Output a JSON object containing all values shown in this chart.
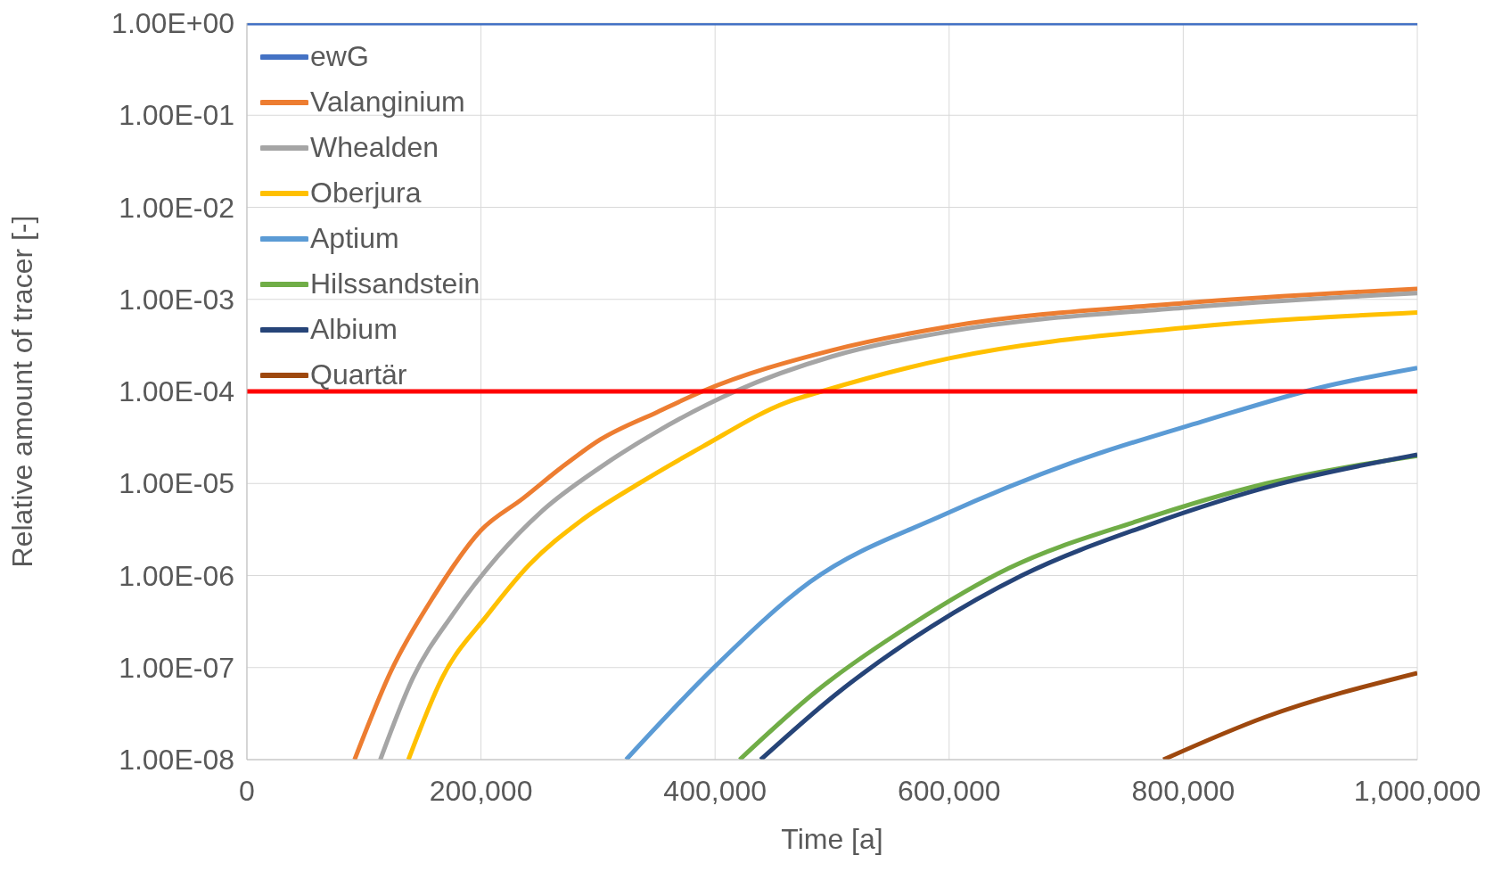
{
  "chart_data": {
    "type": "line",
    "xlabel": "Time [a]",
    "ylabel": "Relative amount of tracer [-]",
    "log": "y",
    "grid": true,
    "legend": "top left",
    "xlim": [
      0,
      1000000
    ],
    "xticks": [
      0,
      {
        "value": 200000,
        "label": "200,000"
      },
      {
        "value": 400000,
        "label": "400,000"
      },
      {
        "value": 600000,
        "label": "600,000"
      },
      {
        "value": 800000,
        "label": "800,000"
      },
      {
        "value": 1000000,
        "label": "1,000,000"
      }
    ],
    "ylim": [
      1e-08,
      1
    ],
    "yticks": [
      {
        "value": 1e-08,
        "label": "1.00E-08"
      },
      {
        "value": 1e-07,
        "label": "1.00E-07"
      },
      {
        "value": 1e-06,
        "label": "1.00E-06"
      },
      {
        "value": 1e-05,
        "label": "1.00E-05"
      },
      {
        "value": 0.0001,
        "label": "1.00E-04"
      },
      {
        "value": 0.001,
        "label": "1.00E-03"
      },
      {
        "value": 0.01,
        "label": "1.00E-02"
      },
      {
        "value": 0.1,
        "label": "1.00E-01"
      },
      {
        "value": 1,
        "label": "1.00E+00"
      }
    ],
    "ref_lines": [
      {
        "axis": "y",
        "value": 0.0001,
        "color": "#ff0000"
      }
    ],
    "series": [
      {
        "name": "ewG",
        "color": "#4472c4",
        "x": [
          0,
          1000000
        ],
        "values": [
          1,
          1
        ]
      },
      {
        "name": "Valanginium",
        "color": "#ed7d31",
        "x": [
          92000,
          123000,
          159000,
          200000,
          236000,
          269000,
          302000,
          351000,
          389000,
          500000,
          601000,
          800000,
          1000000
        ],
        "values": [
          1e-08,
          9.1e-08,
          5.8e-07,
          3.1e-06,
          6.9e-06,
          1.5e-05,
          3e-05,
          6e-05,
          0.0001,
          0.00028,
          0.00051,
          0.00091,
          0.0013
        ]
      },
      {
        "name": "Whealden",
        "color": "#a5a5a5",
        "x": [
          114000,
          142000,
          176000,
          214000,
          252000,
          302000,
          351000,
          417000,
          500000,
          601000,
          800000,
          1000000
        ],
        "values": [
          1e-08,
          7.8e-08,
          3.8e-07,
          1.6e-06,
          5e-06,
          1.5e-05,
          3.7e-05,
          0.0001,
          0.00024,
          0.00045,
          0.00081,
          0.00117
        ]
      },
      {
        "name": "Oberjura",
        "color": "#ffc000",
        "x": [
          138000,
          167000,
          206000,
          241000,
          285000,
          335000,
          389000,
          461000,
          491000,
          601000,
          800000,
          1000000
        ],
        "values": [
          1e-08,
          7.8e-08,
          3.8e-07,
          1.3e-06,
          3.9e-06,
          1e-05,
          2.5e-05,
          7.6e-05,
          0.0001,
          0.00023,
          0.00049,
          0.00072
        ]
      },
      {
        "name": "Aptium",
        "color": "#5b9bd5",
        "x": [
          324000,
          399000,
          481000,
          596000,
          706000,
          816000,
          917000,
          1000000
        ],
        "values": [
          1e-08,
          1e-07,
          8.5e-07,
          4.6e-06,
          1.7e-05,
          4.7e-05,
          0.00011,
          0.00018
        ]
      },
      {
        "name": "Hilssandstein",
        "color": "#70ad47",
        "x": [
          421000,
          487000,
          569000,
          651000,
          761000,
          871000,
          1000000
        ],
        "values": [
          1e-08,
          5.6e-08,
          3e-07,
          1.2e-06,
          3.9e-06,
          1e-05,
          2e-05
        ]
      },
      {
        "name": "Albium",
        "color": "#264478",
        "x": [
          439000,
          503000,
          585000,
          662000,
          772000,
          881000,
          1000000
        ],
        "values": [
          1e-08,
          5.1e-08,
          2.8e-07,
          1e-06,
          3.6e-06,
          9.8e-06,
          2.05e-05
        ]
      },
      {
        "name": "Quartär",
        "color": "#9e480e",
        "x": [
          783000,
          870000,
          1000000
        ],
        "values": [
          1e-08,
          2.9e-08,
          8.7e-08
        ]
      }
    ]
  }
}
